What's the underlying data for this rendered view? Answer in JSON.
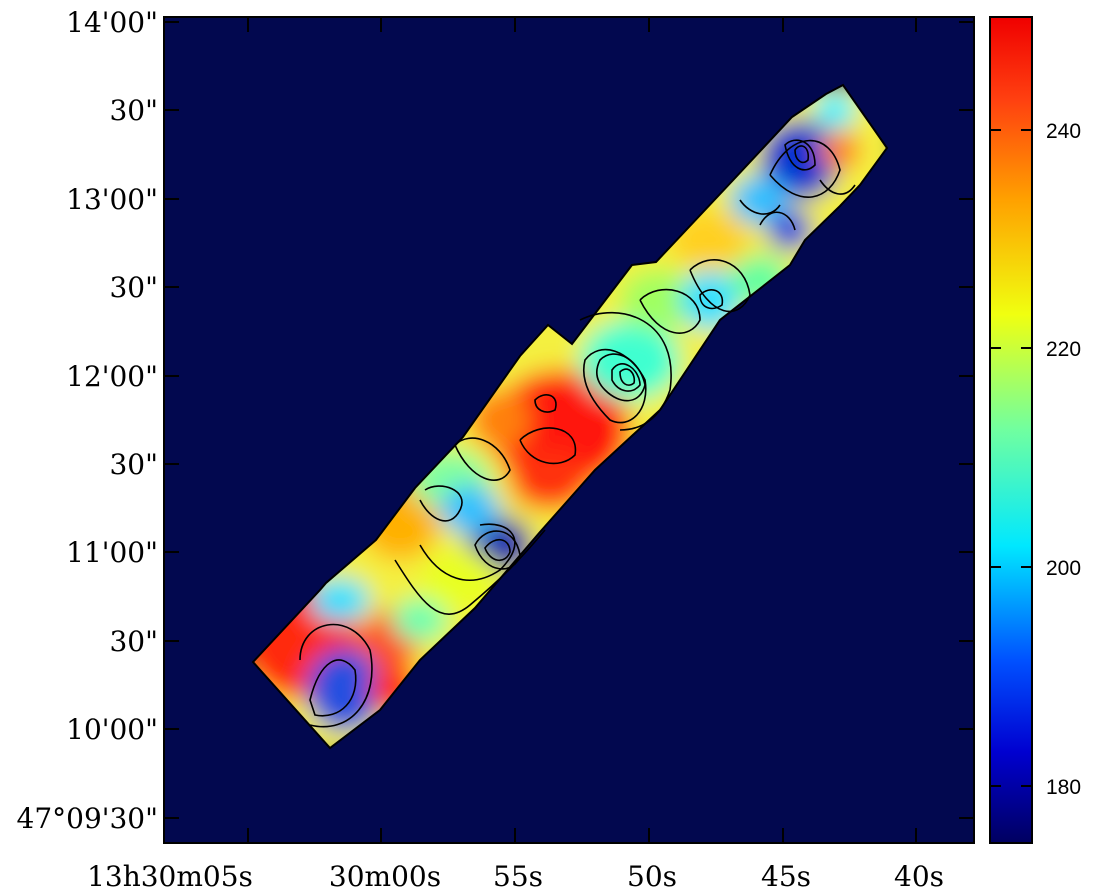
{
  "chart_data": {
    "type": "heatmap",
    "title": "",
    "xlabel": "",
    "ylabel": "",
    "x_axis": {
      "ticks": [
        {
          "label": "13h30m05s"
        },
        {
          "label": "30m00s"
        },
        {
          "label": "55s"
        },
        {
          "label": "50s"
        },
        {
          "label": "45s"
        },
        {
          "label": "40s"
        }
      ]
    },
    "y_axis": {
      "ticks": [
        {
          "label": "14'00\""
        },
        {
          "label": "30\""
        },
        {
          "label": "13'00\""
        },
        {
          "label": "30\""
        },
        {
          "label": "12'00\""
        },
        {
          "label": "30\""
        },
        {
          "label": "11'00\""
        },
        {
          "label": "30\""
        },
        {
          "label": "10'00\""
        },
        {
          "label": "47°09'30\""
        }
      ]
    },
    "colorbar": {
      "colormap": "jet",
      "range": [
        175,
        251
      ],
      "ticks": [
        180,
        200,
        220,
        240
      ]
    },
    "background_color": "#02084f",
    "contours": true
  }
}
